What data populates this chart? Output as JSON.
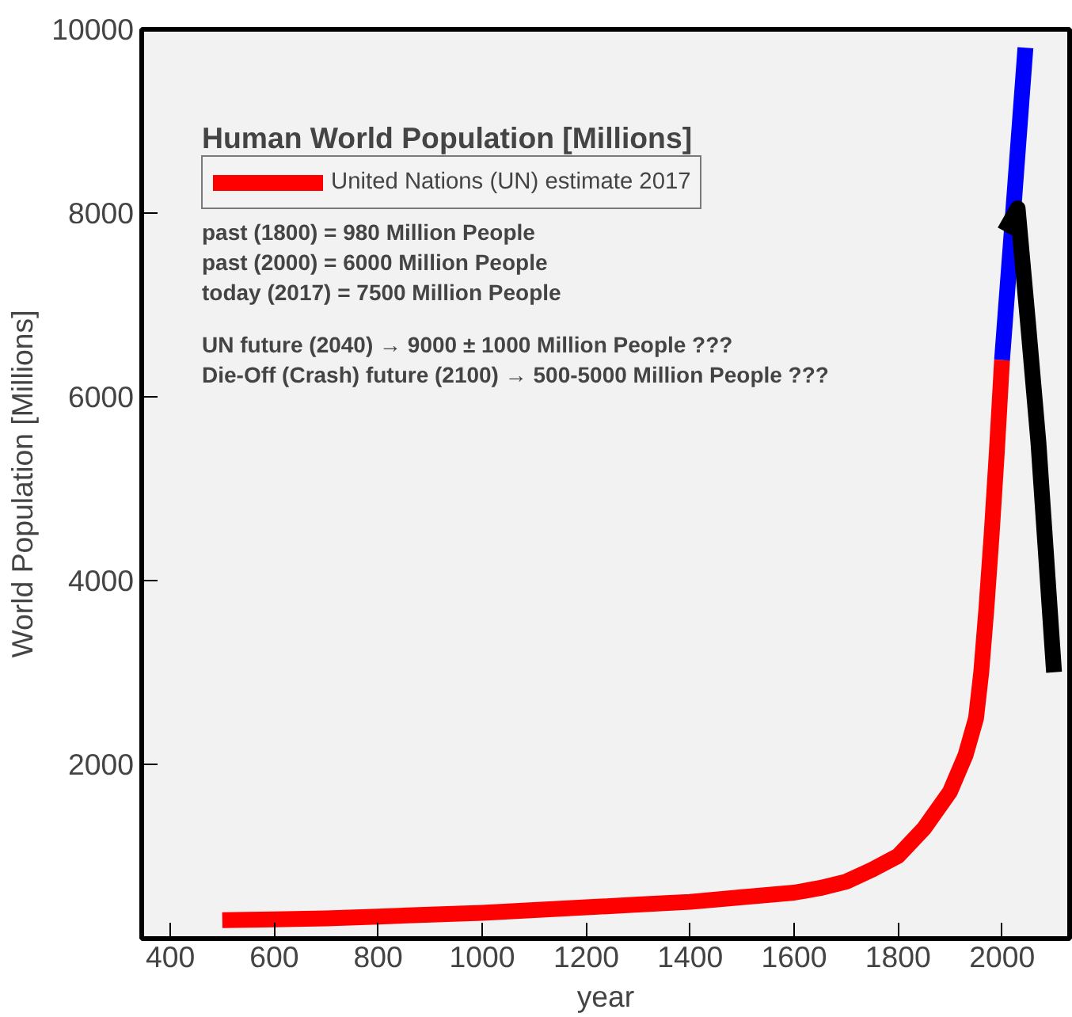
{
  "chart_data": {
    "type": "line",
    "title": "Human World Population [Millions]",
    "xlabel": "year",
    "ylabel": "World Population [Millions]",
    "series": [
      {
        "name": "United Nations (UN) estimate 2017",
        "color": "#ff0000",
        "x": [
          500,
          600,
          700,
          800,
          900,
          1000,
          1100,
          1200,
          1300,
          1400,
          1500,
          1600,
          1650,
          1700,
          1750,
          1800,
          1850,
          1900,
          1930,
          1950,
          1960,
          1970,
          1980,
          1990,
          2000
        ],
        "values": [
          300,
          310,
          320,
          340,
          360,
          380,
          410,
          440,
          470,
          500,
          550,
          600,
          650,
          720,
          850,
          1000,
          1300,
          1700,
          2100,
          2500,
          3000,
          3700,
          4500,
          5400,
          6400
        ]
      },
      {
        "color": "#0000ff",
        "x": [
          2000,
          2020,
          2045
        ],
        "values": [
          6400,
          7900,
          9800
        ]
      },
      {
        "color": "#000000",
        "x": [
          2005,
          2030,
          2050,
          2070,
          2100
        ],
        "values": [
          7800,
          8050,
          6800,
          5500,
          3000
        ]
      }
    ],
    "xlim": [
      345,
      2130
    ],
    "ylim": [
      100,
      10000
    ],
    "xticks": [
      400,
      600,
      800,
      1000,
      1200,
      1400,
      1600,
      1800,
      2000
    ],
    "yticks": [
      2000,
      4000,
      6000,
      8000,
      10000
    ],
    "grid": false,
    "legend": "top left",
    "line_style": "solid",
    "marker": "none",
    "annotations": [
      "past (1800) = 980 Million People",
      "past (2000) = 6000 Million People",
      "today (2017) = 7500 Million People",
      "UN future (2040)   → 9000  ± 1000 Million People ???",
      "Die-Off (Crash) future (2100)     → 500-5000 Million People ???"
    ]
  }
}
